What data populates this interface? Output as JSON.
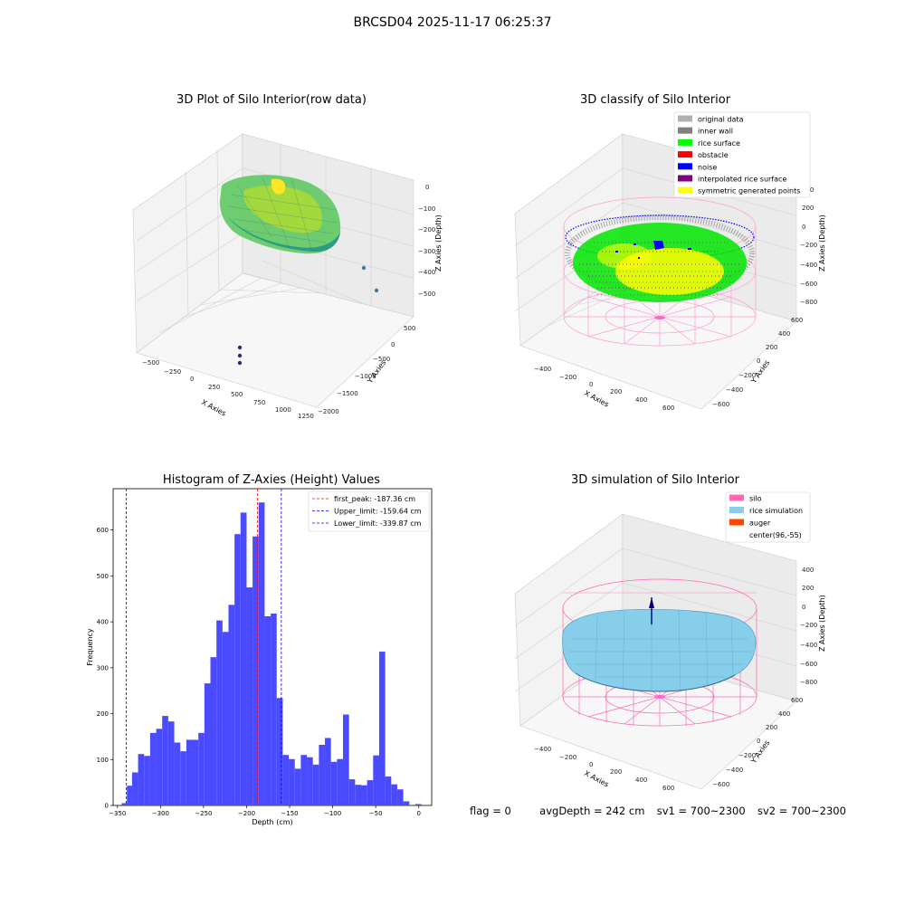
{
  "figure": {
    "suptitle": "BRCSD04 2025-11-17 06:25:37",
    "footer": {
      "flag": "flag = 0",
      "avg_depth": "avgDepth = 242 cm",
      "sv1": "sv1 = 700~2300",
      "sv2": "sv2 = 700~2300"
    }
  },
  "chart_data": [
    {
      "type": "scatter",
      "projection": "3d",
      "title": "3D Plot of Silo Interior(row data)",
      "xlabel": "X Axies",
      "ylabel": "Y Axies",
      "zlabel": "Z Axies (Depth)",
      "xticks": [
        "−500",
        "−250",
        "0",
        "250",
        "500",
        "750",
        "1000",
        "1250"
      ],
      "yticks": [
        "−2000",
        "−1500",
        "−1000",
        "−500",
        "0",
        "500"
      ],
      "zticks": [
        "0",
        "−100",
        "−200",
        "−300",
        "−400",
        "−500"
      ],
      "colormap": "viridis",
      "outliers": [
        {
          "x": 1100,
          "y": 200,
          "z": -330
        },
        {
          "x": 1200,
          "y": 300,
          "z": -420
        },
        {
          "x": 450,
          "y": -1750,
          "z": -550
        },
        {
          "x": 450,
          "y": -1800,
          "z": -590
        },
        {
          "x": 450,
          "y": -1850,
          "z": -620
        }
      ]
    },
    {
      "type": "scatter",
      "projection": "3d",
      "title": "3D classify of Silo Interior",
      "xlabel": "X Axies",
      "ylabel": "Y Axies",
      "zlabel": "Z Axies (Depth)",
      "xticks": [
        "−400",
        "−200",
        "0",
        "200",
        "400",
        "600"
      ],
      "yticks": [
        "−600",
        "−400",
        "−200",
        "0",
        "200",
        "400",
        "600"
      ],
      "zticks": [
        "200",
        "0",
        "−200",
        "−400",
        "−600",
        "−800"
      ],
      "z_extra_top": "400",
      "legend_position": "upper right",
      "legend": [
        {
          "label": "original data",
          "color": "#b0b0b0"
        },
        {
          "label": "inner wall",
          "color": "#808080"
        },
        {
          "label": "rice surface",
          "color": "#00ff00"
        },
        {
          "label": "obstacle",
          "color": "#ff0000"
        },
        {
          "label": "noise",
          "color": "#0000ff"
        },
        {
          "label": "interpolated rice surface",
          "color": "#800080"
        },
        {
          "label": "symmetric generated points",
          "color": "#ffff00"
        }
      ]
    },
    {
      "type": "histogram",
      "title": "Histogram of Z-Axies (Height) Values",
      "xlabel": "Depth (cm)",
      "ylabel": "Frequency",
      "xlim": [
        -355,
        15
      ],
      "ylim": [
        0,
        690
      ],
      "xticks": [
        -350,
        -300,
        -250,
        -200,
        -150,
        -100,
        -50,
        0
      ],
      "yticks": [
        0,
        100,
        200,
        300,
        400,
        500,
        600
      ],
      "bar_color": "#4a4aff",
      "bins": [
        {
          "start": -345,
          "end": -339,
          "count": 5
        },
        {
          "start": -339,
          "end": -333,
          "count": 43
        },
        {
          "start": -333,
          "end": -326,
          "count": 72
        },
        {
          "start": -326,
          "end": -319,
          "count": 112
        },
        {
          "start": -319,
          "end": -312,
          "count": 108
        },
        {
          "start": -312,
          "end": -305,
          "count": 158
        },
        {
          "start": -305,
          "end": -298,
          "count": 167
        },
        {
          "start": -298,
          "end": -291,
          "count": 195
        },
        {
          "start": -291,
          "end": -284,
          "count": 183
        },
        {
          "start": -284,
          "end": -277,
          "count": 137
        },
        {
          "start": -277,
          "end": -270,
          "count": 118
        },
        {
          "start": -270,
          "end": -263,
          "count": 143
        },
        {
          "start": -263,
          "end": -256,
          "count": 143
        },
        {
          "start": -256,
          "end": -249,
          "count": 158
        },
        {
          "start": -249,
          "end": -242,
          "count": 266
        },
        {
          "start": -242,
          "end": -235,
          "count": 323
        },
        {
          "start": -235,
          "end": -228,
          "count": 403
        },
        {
          "start": -228,
          "end": -221,
          "count": 378
        },
        {
          "start": -221,
          "end": -214,
          "count": 437
        },
        {
          "start": -214,
          "end": -207,
          "count": 591
        },
        {
          "start": -207,
          "end": -200,
          "count": 638
        },
        {
          "start": -200,
          "end": -193,
          "count": 475
        },
        {
          "start": -193,
          "end": -186,
          "count": 586
        },
        {
          "start": -186,
          "end": -179,
          "count": 660
        },
        {
          "start": -179,
          "end": -172,
          "count": 412
        },
        {
          "start": -172,
          "end": -165,
          "count": 418
        },
        {
          "start": -165,
          "end": -158,
          "count": 234
        },
        {
          "start": -158,
          "end": -151,
          "count": 110
        },
        {
          "start": -151,
          "end": -144,
          "count": 101
        },
        {
          "start": -144,
          "end": -137,
          "count": 80
        },
        {
          "start": -137,
          "end": -130,
          "count": 110
        },
        {
          "start": -130,
          "end": -123,
          "count": 105
        },
        {
          "start": -123,
          "end": -116,
          "count": 89
        },
        {
          "start": -116,
          "end": -109,
          "count": 132
        },
        {
          "start": -109,
          "end": -102,
          "count": 147
        },
        {
          "start": -102,
          "end": -95,
          "count": 95
        },
        {
          "start": -95,
          "end": -88,
          "count": 101
        },
        {
          "start": -88,
          "end": -81,
          "count": 198
        },
        {
          "start": -81,
          "end": -74,
          "count": 57
        },
        {
          "start": -74,
          "end": -67,
          "count": 45
        },
        {
          "start": -67,
          "end": -60,
          "count": 44
        },
        {
          "start": -60,
          "end": -53,
          "count": 55
        },
        {
          "start": -53,
          "end": -46,
          "count": 109
        },
        {
          "start": -46,
          "end": -39,
          "count": 335
        },
        {
          "start": -39,
          "end": -32,
          "count": 63
        },
        {
          "start": -32,
          "end": -25,
          "count": 46
        },
        {
          "start": -25,
          "end": -18,
          "count": 35
        },
        {
          "start": -18,
          "end": -11,
          "count": 9
        },
        {
          "start": -11,
          "end": -4,
          "count": 0
        },
        {
          "start": -4,
          "end": 3,
          "count": 3
        }
      ],
      "vlines": [
        {
          "label": "first_peak: -187.36 cm",
          "x": -187.36,
          "color": "#ff0000"
        },
        {
          "label": "Upper_limit: -159.64 cm",
          "x": -159.64,
          "color": "#0000ff"
        },
        {
          "label": "Lower_limit: -339.87 cm",
          "x": -339.87,
          "color": "#0000ff"
        }
      ],
      "legend_position": "upper right"
    },
    {
      "type": "surface",
      "projection": "3d",
      "title": "3D simulation of Silo Interior",
      "xlabel": "X Axies",
      "ylabel": "Y Axies",
      "zlabel": "Z Axies (Depth)",
      "xticks": [
        "−400",
        "−200",
        "0",
        "200",
        "400",
        "600"
      ],
      "yticks": [
        "−600",
        "−400",
        "−200",
        "0",
        "200",
        "400",
        "600"
      ],
      "zticks": [
        "400",
        "200",
        "0",
        "−200",
        "−400",
        "−600",
        "−800"
      ],
      "legend_position": "upper right",
      "legend": [
        {
          "label": "silo",
          "color": "#ff69b4"
        },
        {
          "label": "rice simulation",
          "color": "#87ceeb"
        },
        {
          "label": "auger",
          "color": "#ff4500"
        },
        {
          "label": "center(96,-55)",
          "color": "none"
        }
      ]
    }
  ]
}
